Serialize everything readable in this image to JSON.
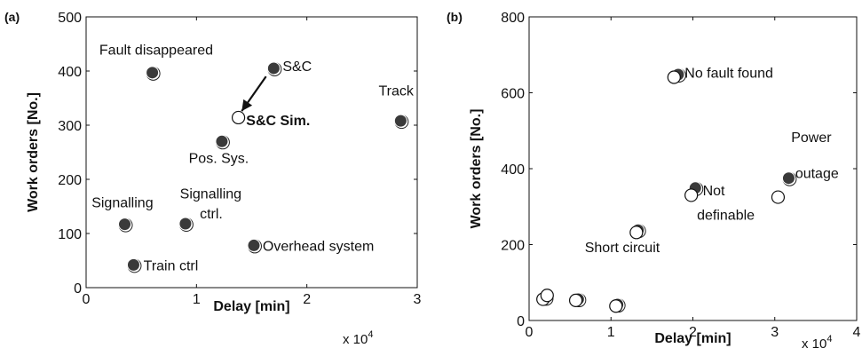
{
  "chart_data": [
    {
      "panel": "(a)",
      "type": "scatter",
      "xlabel": "Delay [min]",
      "ylabel": "Work orders [No.]",
      "x_multiplier": "x 10",
      "x_multiplier_exp": "4",
      "xlim": [
        0,
        3
      ],
      "ylim": [
        0,
        500
      ],
      "xticks": [
        "0",
        "1",
        "2",
        "3"
      ],
      "yticks": [
        "0",
        "100",
        "200",
        "300",
        "400",
        "500"
      ],
      "grid": false,
      "points": [
        {
          "x": 0.6,
          "y": 397,
          "style": "filled"
        },
        {
          "x": 1.7,
          "y": 405,
          "style": "filled"
        },
        {
          "x": 1.38,
          "y": 314,
          "style": "hollow"
        },
        {
          "x": 2.85,
          "y": 308,
          "style": "filled"
        },
        {
          "x": 1.23,
          "y": 270,
          "style": "filled"
        },
        {
          "x": 0.35,
          "y": 117,
          "style": "filled"
        },
        {
          "x": 0.9,
          "y": 118,
          "style": "filled"
        },
        {
          "x": 1.52,
          "y": 78,
          "style": "filled"
        },
        {
          "x": 0.43,
          "y": 42,
          "style": "filled"
        }
      ],
      "annotations": [
        {
          "text": "Fault disappeared",
          "x": 0.12,
          "y": 430,
          "bold": false
        },
        {
          "text": "S&C",
          "x": 1.78,
          "y": 400,
          "bold": false
        },
        {
          "text": "S&C Sim.",
          "x": 1.45,
          "y": 300,
          "bold": true
        },
        {
          "text": "Track",
          "x": 2.65,
          "y": 355,
          "bold": false
        },
        {
          "text": "Pos. Sys.",
          "x": 0.93,
          "y": 230,
          "bold": false
        },
        {
          "text": "Signalling",
          "x": 0.05,
          "y": 148,
          "bold": false
        },
        {
          "text": "Signalling",
          "x": 0.85,
          "y": 165,
          "bold": false
        },
        {
          "text": "ctrl.",
          "x": 1.03,
          "y": 128,
          "bold": false
        },
        {
          "text": "Overhead system",
          "x": 1.6,
          "y": 68,
          "bold": false
        },
        {
          "text": "Train ctrl",
          "x": 0.52,
          "y": 32,
          "bold": false
        }
      ],
      "arrow": {
        "from": [
          1.63,
          390
        ],
        "to": [
          1.41,
          326
        ]
      }
    },
    {
      "panel": "(b)",
      "type": "scatter",
      "xlabel": "Delay [min]",
      "ylabel": "Work orders [No.]",
      "x_multiplier": "x 10",
      "x_multiplier_exp": "4",
      "xlim": [
        0,
        4
      ],
      "ylim": [
        0,
        800
      ],
      "xticks": [
        "0",
        "1",
        "2",
        "3",
        "4"
      ],
      "yticks": [
        "0",
        "200",
        "400",
        "600",
        "800"
      ],
      "grid": false,
      "points": [
        {
          "x": 1.82,
          "y": 648,
          "style": "filled"
        },
        {
          "x": 1.77,
          "y": 641,
          "style": "hollow"
        },
        {
          "x": 2.03,
          "y": 349,
          "style": "filled"
        },
        {
          "x": 1.98,
          "y": 330,
          "style": "hollow"
        },
        {
          "x": 3.17,
          "y": 375,
          "style": "filled"
        },
        {
          "x": 3.04,
          "y": 325,
          "style": "hollow"
        },
        {
          "x": 1.33,
          "y": 238,
          "style": "filled"
        },
        {
          "x": 1.31,
          "y": 232,
          "style": "hollow"
        },
        {
          "x": 0.2,
          "y": 60,
          "style": "filled"
        },
        {
          "x": 0.17,
          "y": 56,
          "style": "hollow"
        },
        {
          "x": 0.22,
          "y": 66,
          "style": "hollow"
        },
        {
          "x": 0.6,
          "y": 56,
          "style": "filled"
        },
        {
          "x": 0.57,
          "y": 53,
          "style": "hollow"
        },
        {
          "x": 1.08,
          "y": 42,
          "style": "filled"
        },
        {
          "x": 1.06,
          "y": 38,
          "style": "hollow"
        }
      ],
      "annotations": [
        {
          "text": "No fault found",
          "x": 1.9,
          "y": 640,
          "bold": false
        },
        {
          "text": "Not",
          "x": 2.12,
          "y": 330,
          "bold": false
        },
        {
          "text": "definable",
          "x": 2.05,
          "y": 265,
          "bold": false
        },
        {
          "text": "Power",
          "x": 3.2,
          "y": 470,
          "bold": false
        },
        {
          "text": "outage",
          "x": 3.25,
          "y": 375,
          "bold": false
        },
        {
          "text": "Short circuit",
          "x": 0.68,
          "y": 180,
          "bold": false
        }
      ]
    }
  ]
}
